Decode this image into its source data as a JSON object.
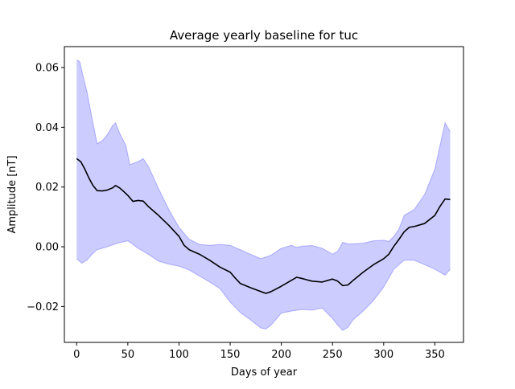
{
  "chart_data": {
    "type": "area",
    "title": "Average yearly baseline for tuc",
    "xlabel": "Days of year",
    "ylabel": "Amplitude [nT]",
    "xlim": [
      -12,
      378
    ],
    "ylim": [
      -0.032,
      0.067
    ],
    "xticks": [
      0,
      50,
      100,
      150,
      200,
      250,
      300,
      350
    ],
    "xtick_labels": [
      "0",
      "50",
      "100",
      "150",
      "200",
      "250",
      "300",
      "350"
    ],
    "yticks": [
      -0.02,
      0.0,
      0.02,
      0.04,
      0.06
    ],
    "ytick_labels": [
      "−0.02",
      "0.00",
      "0.02",
      "0.04",
      "0.06"
    ],
    "grid": false,
    "series": [
      {
        "role": "mean",
        "color": "#000000",
        "x": [
          0,
          4,
          8,
          12,
          16,
          20,
          25,
          30,
          35,
          38,
          42,
          46,
          50,
          55,
          60,
          65,
          70,
          80,
          90,
          100,
          105,
          110,
          120,
          130,
          140,
          150,
          155,
          160,
          170,
          180,
          185,
          190,
          200,
          210,
          215,
          220,
          230,
          240,
          250,
          255,
          260,
          265,
          270,
          280,
          290,
          300,
          305,
          310,
          315,
          320,
          325,
          330,
          340,
          350,
          355,
          360,
          365
        ],
        "y": [
          0.0295,
          0.0285,
          0.026,
          0.023,
          0.0205,
          0.0188,
          0.0187,
          0.019,
          0.0197,
          0.0205,
          0.0197,
          0.0185,
          0.0172,
          0.0152,
          0.0155,
          0.0153,
          0.0135,
          0.0105,
          0.0072,
          0.0035,
          0.0005,
          -0.001,
          -0.0025,
          -0.0045,
          -0.0068,
          -0.0085,
          -0.0105,
          -0.0123,
          -0.0137,
          -0.015,
          -0.0156,
          -0.015,
          -0.0132,
          -0.0112,
          -0.0102,
          -0.0106,
          -0.0115,
          -0.0118,
          -0.0108,
          -0.0115,
          -0.013,
          -0.0128,
          -0.0113,
          -0.0085,
          -0.006,
          -0.004,
          -0.0025,
          0.0002,
          0.0025,
          0.005,
          0.0065,
          0.0068,
          0.0078,
          0.0105,
          0.0135,
          0.016,
          0.0158
        ]
      },
      {
        "role": "upper",
        "color": "#0000ff",
        "x": [
          0,
          3,
          6,
          10,
          15,
          20,
          25,
          30,
          35,
          38,
          42,
          48,
          52,
          56,
          60,
          65,
          70,
          80,
          90,
          100,
          110,
          120,
          130,
          140,
          150,
          160,
          170,
          180,
          190,
          200,
          210,
          215,
          220,
          230,
          240,
          250,
          255,
          260,
          265,
          270,
          280,
          290,
          300,
          305,
          310,
          315,
          320,
          325,
          330,
          340,
          350,
          360,
          365
        ],
        "y": [
          0.0625,
          0.062,
          0.0575,
          0.052,
          0.043,
          0.0345,
          0.0355,
          0.0375,
          0.0405,
          0.0415,
          0.038,
          0.034,
          0.0275,
          0.028,
          0.0285,
          0.0295,
          0.027,
          0.0195,
          0.0125,
          0.0065,
          0.0025,
          0.0008,
          0.0005,
          0.0008,
          0.0005,
          -0.001,
          -0.0025,
          -0.004,
          -0.0028,
          -0.0005,
          0.0005,
          -0.0002,
          0.0002,
          0.0004,
          -0.0005,
          -0.0025,
          -0.0015,
          0.0015,
          0.001,
          0.001,
          0.0012,
          0.002,
          0.0022,
          0.0018,
          0.0035,
          0.006,
          0.0105,
          0.0115,
          0.0125,
          0.0175,
          0.026,
          0.0415,
          0.0385
        ]
      },
      {
        "role": "lower",
        "color": "#0000ff",
        "x": [
          0,
          5,
          10,
          15,
          20,
          25,
          30,
          40,
          50,
          55,
          60,
          70,
          80,
          90,
          100,
          110,
          120,
          130,
          140,
          150,
          160,
          170,
          180,
          185,
          190,
          200,
          210,
          220,
          230,
          240,
          250,
          255,
          260,
          265,
          270,
          280,
          290,
          300,
          310,
          320,
          330,
          340,
          350,
          360,
          365
        ],
        "y": [
          -0.004,
          -0.0055,
          -0.0045,
          -0.0025,
          -0.001,
          -0.0005,
          0.0,
          0.0012,
          0.002,
          0.0008,
          -0.0005,
          -0.0025,
          -0.0048,
          -0.0058,
          -0.0065,
          -0.0078,
          -0.0098,
          -0.0118,
          -0.014,
          -0.0185,
          -0.022,
          -0.0245,
          -0.0272,
          -0.0275,
          -0.0262,
          -0.0222,
          -0.0215,
          -0.021,
          -0.0212,
          -0.0205,
          -0.024,
          -0.0262,
          -0.028,
          -0.027,
          -0.0245,
          -0.0215,
          -0.018,
          -0.0135,
          -0.0075,
          -0.0045,
          -0.0045,
          -0.006,
          -0.0075,
          -0.0095,
          -0.0075
        ]
      }
    ]
  }
}
